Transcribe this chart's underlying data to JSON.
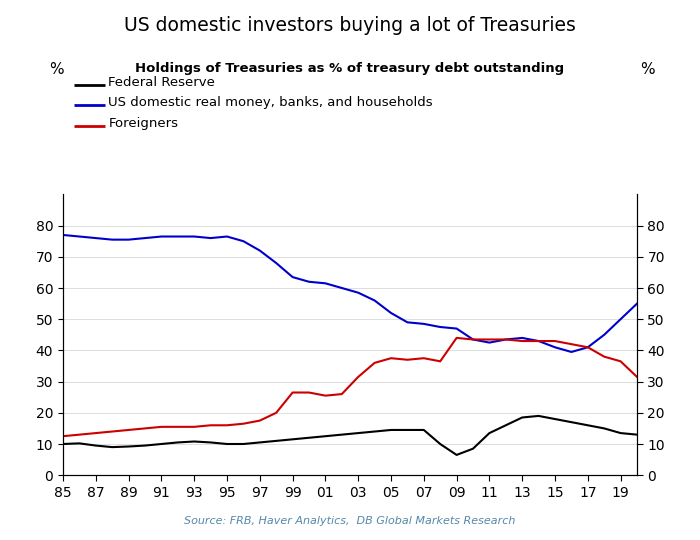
{
  "title": "US domestic investors buying a lot of Treasuries",
  "subtitle": "Holdings of Treasuries as % of treasury debt outstanding",
  "source": "Source: FRB, Haver Analytics,  DB Global Markets Research",
  "ylabel_left": "%",
  "ylabel_right": "%",
  "ylim": [
    0,
    90
  ],
  "yticks": [
    0,
    10,
    20,
    30,
    40,
    50,
    60,
    70,
    80
  ],
  "legend": [
    "Federal Reserve",
    "US domestic real money, banks, and households",
    "Foreigners"
  ],
  "colors": [
    "#000000",
    "#0000cc",
    "#cc0000"
  ],
  "years": [
    1985,
    1986,
    1987,
    1988,
    1989,
    1990,
    1991,
    1992,
    1993,
    1994,
    1995,
    1996,
    1997,
    1998,
    1999,
    2000,
    2001,
    2002,
    2003,
    2004,
    2005,
    2006,
    2007,
    2008,
    2009,
    2010,
    2011,
    2012,
    2013,
    2014,
    2015,
    2016,
    2017,
    2018,
    2019,
    2020
  ],
  "fed_reserve": [
    10.0,
    10.2,
    9.5,
    9.0,
    9.2,
    9.5,
    10.0,
    10.5,
    10.8,
    10.5,
    10.0,
    10.0,
    10.5,
    11.0,
    11.5,
    12.0,
    12.5,
    13.0,
    13.5,
    14.0,
    14.5,
    14.5,
    14.5,
    10.0,
    6.5,
    8.5,
    13.5,
    16.0,
    18.5,
    19.0,
    18.0,
    17.0,
    16.0,
    15.0,
    13.5,
    13.0
  ],
  "domestic": [
    77.0,
    76.5,
    76.0,
    75.5,
    75.5,
    76.0,
    76.5,
    76.5,
    76.5,
    76.0,
    76.5,
    75.0,
    72.0,
    68.0,
    63.5,
    62.0,
    61.5,
    60.0,
    58.5,
    56.0,
    52.0,
    49.0,
    48.5,
    47.5,
    47.0,
    43.5,
    42.5,
    43.5,
    44.0,
    43.0,
    41.0,
    39.5,
    41.0,
    45.0,
    50.0,
    55.0
  ],
  "foreigners": [
    12.5,
    13.0,
    13.5,
    14.0,
    14.5,
    15.0,
    15.5,
    15.5,
    15.5,
    16.0,
    16.0,
    16.5,
    17.5,
    20.0,
    26.5,
    26.5,
    25.5,
    26.0,
    31.5,
    36.0,
    37.5,
    37.0,
    37.5,
    36.5,
    44.0,
    43.5,
    43.5,
    43.5,
    43.0,
    43.0,
    43.0,
    42.0,
    41.0,
    38.0,
    36.5,
    31.5
  ]
}
